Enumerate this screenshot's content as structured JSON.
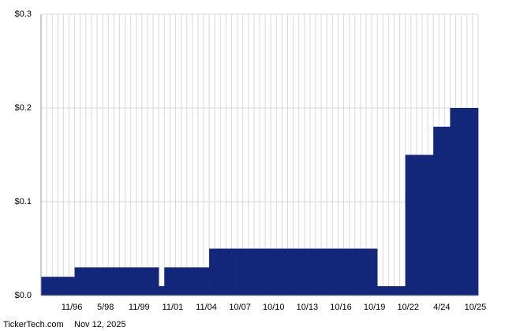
{
  "chart_data": {
    "type": "bar",
    "categories": [
      null,
      null,
      null,
      null,
      null,
      "11/96",
      null,
      null,
      null,
      null,
      null,
      "5/98",
      null,
      null,
      null,
      null,
      null,
      "11/99",
      null,
      null,
      null,
      null,
      null,
      "11/01",
      null,
      null,
      null,
      null,
      null,
      "11/04",
      null,
      null,
      null,
      null,
      null,
      "10/07",
      null,
      null,
      null,
      null,
      null,
      "10/10",
      null,
      null,
      null,
      null,
      null,
      "10/13",
      null,
      null,
      null,
      null,
      null,
      "10/16",
      null,
      null,
      null,
      null,
      null,
      "10/19",
      null,
      null,
      null,
      null,
      null,
      "10/22",
      null,
      null,
      null,
      null,
      null,
      "4/24",
      null,
      null,
      null,
      null,
      null,
      "10/25"
    ],
    "values": [
      0.02,
      0.02,
      0.02,
      0.02,
      0.02,
      0.02,
      0.03,
      0.03,
      0.03,
      0.03,
      0.03,
      0.03,
      0.03,
      0.03,
      0.03,
      0.03,
      0.03,
      0.03,
      0.03,
      0.03,
      0.03,
      0.01,
      0.03,
      0.03,
      0.03,
      0.03,
      0.03,
      0.03,
      0.03,
      0.03,
      0.05,
      0.05,
      0.05,
      0.05,
      0.05,
      0.05,
      0.05,
      0.05,
      0.05,
      0.05,
      0.05,
      0.05,
      0.05,
      0.05,
      0.05,
      0.05,
      0.05,
      0.05,
      0.05,
      0.05,
      0.05,
      0.05,
      0.05,
      0.05,
      0.05,
      0.05,
      0.05,
      0.05,
      0.05,
      0.05,
      0.01,
      0.01,
      0.01,
      0.01,
      0.01,
      0.15,
      0.15,
      0.15,
      0.15,
      0.15,
      0.18,
      0.18,
      0.18,
      0.2,
      0.2,
      0.2,
      0.2,
      0.2
    ],
    "color": "#13277a",
    "ylim": [
      0,
      0.3
    ],
    "yticks": [
      {
        "value": 0,
        "label": "$0.0"
      },
      {
        "value": 0.1,
        "label": "$0.1"
      },
      {
        "value": 0.2,
        "label": "$0.2"
      },
      {
        "value": 0.3,
        "label": "$0.3"
      }
    ],
    "grid": true,
    "source": "TickerTech.com",
    "date": "Nov 12, 2025"
  }
}
